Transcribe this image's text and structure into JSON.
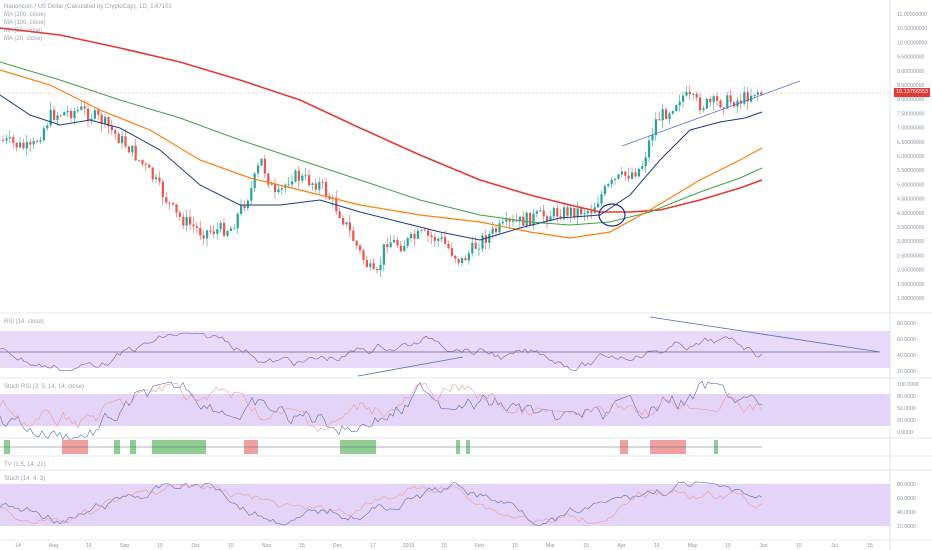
{
  "header": {
    "title": "Nanoncoin / US Dollar (Calculated by CryptoCap), 1D, 1.67101",
    "ma_lines": [
      "MA (200, close)",
      "MA (100, close)",
      "MA (50, close)",
      "MA (20, close)"
    ]
  },
  "indicators": {
    "rsi_label": "RSI (14, close)",
    "stoch_label": "Stoch RSI (3, 3, 14, 14, close)",
    "nvi_label": "TV (1,5, 14, 21)",
    "kst_label": "Stoch (14, 4, 3)"
  },
  "colors": {
    "up": "#26a69a",
    "down": "#ef5350",
    "ma200": "#e53935",
    "ma100": "#43a047",
    "ma50": "#ff7f0e",
    "ma20": "#1e3a8a",
    "band": "#d9c2f5",
    "trendline": "#5470c6",
    "circle": "#1c2a8c"
  },
  "chart_data": {
    "type": "candlestick",
    "last_price_label": "10.13766553",
    "price_axis_labels": [
      "11.00000000",
      "10.50000000",
      "10.00000000",
      "9.50000000",
      "9.00000000",
      "8.50000000",
      "8.00000000",
      "7.50000000",
      "7.00000000",
      "6.50000000",
      "6.00000000",
      "5.50000000",
      "5.00000000",
      "4.50000000",
      "4.00000000",
      "3.50000000",
      "3.00000000",
      "2.50000000",
      "2.00000000",
      "1.50000000",
      "1.00000000"
    ],
    "rsi_axis_labels": [
      "80.0000",
      "60.0000",
      "40.0000",
      "20.0000"
    ],
    "stoch_axis_labels": [
      "100.0000",
      "80.0000",
      "50.0000",
      "20.0000",
      "0.0000"
    ],
    "osc_axis_labels": [
      "80.0000",
      "60.0000",
      "40.0000",
      "20.0000"
    ],
    "date_labels": [
      "14",
      "Aug",
      "15",
      "Sep",
      "15",
      "Oct",
      "15",
      "Nov",
      "15",
      "Dec",
      "17",
      "2019",
      "15",
      "Feb",
      "15",
      "Mar",
      "15",
      "Apr",
      "15",
      "May",
      "15",
      "Jun",
      "15",
      "Jul",
      "15"
    ]
  }
}
